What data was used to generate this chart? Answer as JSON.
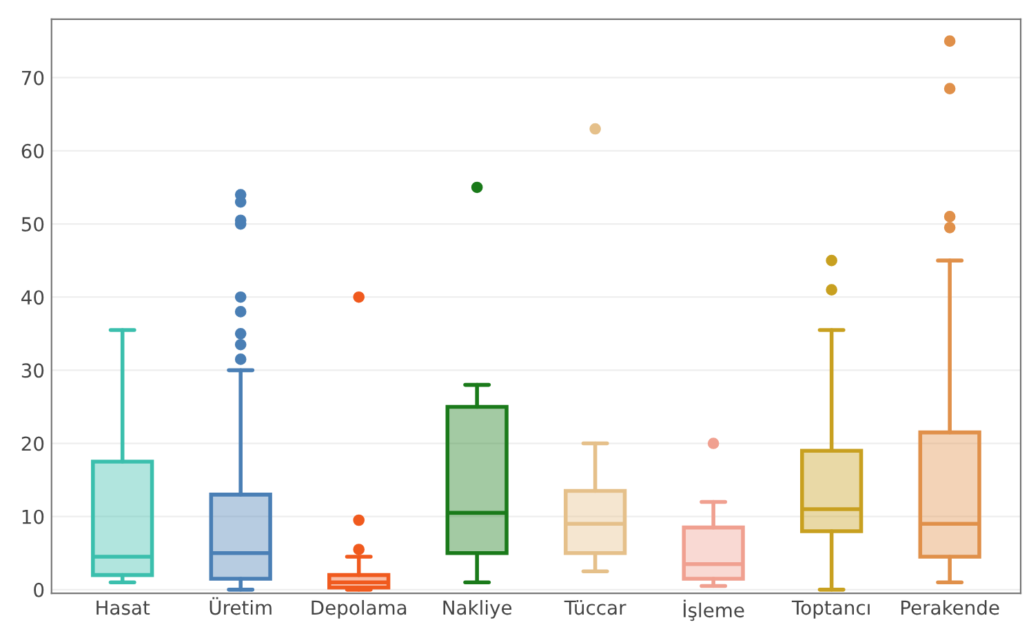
{
  "chart_data": {
    "type": "box",
    "categories": [
      "Hasat",
      "Üretim",
      "Depolama",
      "Nakliye",
      "Tüccar",
      "İşleme",
      "Toptancı",
      "Perakende"
    ],
    "colors": [
      "#3bbfad",
      "#4a7fb5",
      "#f05a1e",
      "#1a7a1a",
      "#e5c08a",
      "#f0a090",
      "#c8a020",
      "#e0904a"
    ],
    "boxes": [
      {
        "low": 1,
        "q1": 2,
        "median": 4.5,
        "q3": 17.5,
        "high": 35.5
      },
      {
        "low": 0,
        "q1": 1.5,
        "median": 5,
        "q3": 13,
        "high": 30,
        "outliers": [
          31.5,
          33.5,
          35,
          38,
          40,
          50,
          50.5,
          53,
          54
        ]
      },
      {
        "low": 0,
        "q1": 0.3,
        "median": 1,
        "q3": 2,
        "high": 4.5,
        "outliers": [
          5.5,
          9.5,
          40
        ]
      },
      {
        "low": 1,
        "q1": 5,
        "median": 10.5,
        "q3": 25,
        "high": 28,
        "outliers": [
          55
        ]
      },
      {
        "low": 2.5,
        "q1": 5,
        "median": 9,
        "q3": 13.5,
        "high": 20,
        "outliers": [
          63
        ]
      },
      {
        "low": 0.5,
        "q1": 1.5,
        "median": 3.5,
        "q3": 8.5,
        "high": 12,
        "outliers": [
          20
        ]
      },
      {
        "low": 0,
        "q1": 8,
        "median": 11,
        "q3": 19,
        "high": 35.5,
        "outliers": [
          41,
          45
        ]
      },
      {
        "low": 1,
        "q1": 4.5,
        "median": 9,
        "q3": 21.5,
        "high": 45,
        "outliers": [
          49.5,
          51,
          68.5,
          75
        ]
      }
    ],
    "ylim": [
      -0.5,
      78
    ],
    "yticks": [
      0,
      10,
      20,
      30,
      40,
      50,
      60,
      70
    ],
    "grid": "y"
  }
}
